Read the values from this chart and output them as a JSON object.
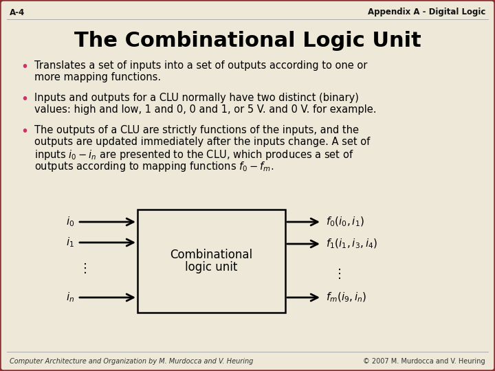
{
  "bg_color": "#ede8d8",
  "border_color": "#8b3030",
  "slide_title": "The Combinational Logic Unit",
  "header_left": "A-4",
  "header_right": "Appendix A - Digital Logic",
  "footer_left": "Computer Architecture and Organization by M. Murdocca and V. Heuring",
  "footer_right": "© 2007 M. Murdocca and V. Heuring",
  "bullet_color": "#cc3366",
  "text_color": "#000000",
  "title_fontsize": 22,
  "header_fontsize": 8.5,
  "body_fontsize": 10.5,
  "footer_fontsize": 7,
  "diagram_fontsize": 11
}
